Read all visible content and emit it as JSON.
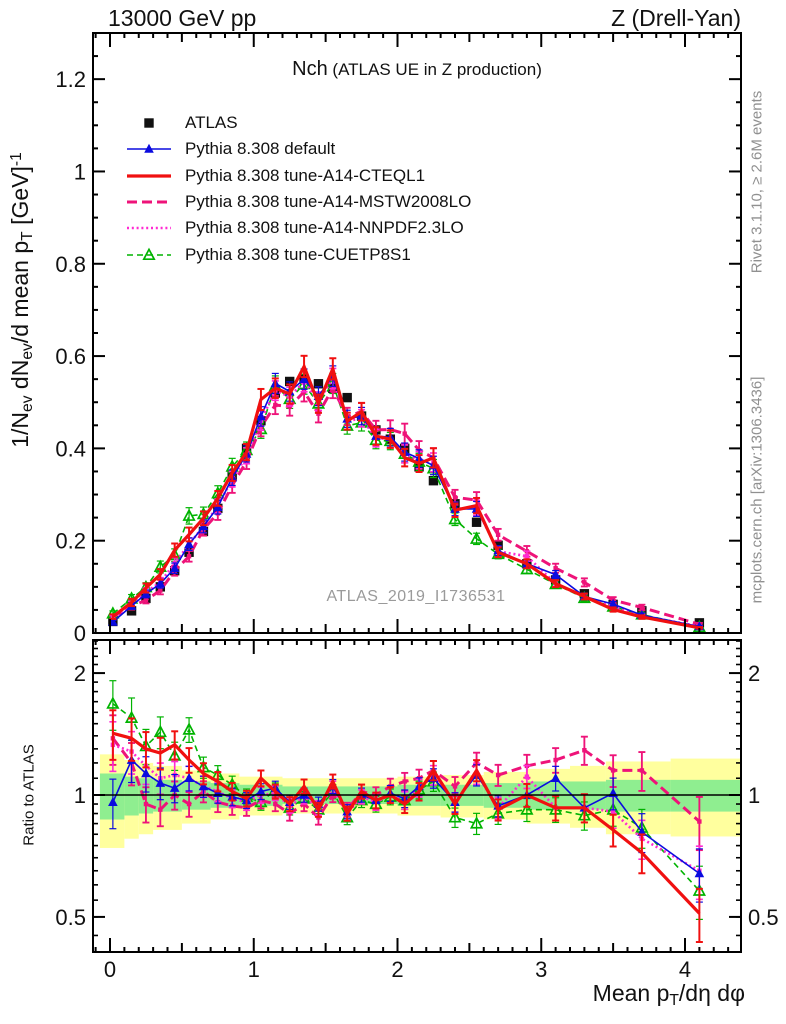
{
  "header": {
    "left": "13000 GeV pp",
    "right": "Z (Drell-Yan)"
  },
  "title": {
    "main": "Nch",
    "paren": " (ATLAS UE in Z production)"
  },
  "watermark": "ATLAS_2019_I1736531",
  "side_notes": {
    "top_right": "Rivet 3.1.10, ≥ 2.6M events",
    "bottom_right": "mcplots.cern.ch [arXiv:1306.3436]"
  },
  "axes": {
    "x": {
      "label_parts": [
        {
          "t": "Mean p"
        },
        {
          "t": "T",
          "s": "sub"
        },
        {
          "t": "/dη dφ"
        }
      ],
      "ticks": [
        {
          "v": 0,
          "label": "0"
        },
        {
          "v": 1,
          "label": "1"
        },
        {
          "v": 2,
          "label": "2"
        },
        {
          "v": 3,
          "label": "3"
        },
        {
          "v": 4,
          "label": "4"
        }
      ],
      "range": [
        -0.118,
        4.39
      ]
    },
    "y_main": {
      "label_parts": [
        {
          "t": "1/N"
        },
        {
          "t": "ev",
          "s": "sub"
        },
        {
          "t": " dN"
        },
        {
          "t": "ev",
          "s": "sub"
        },
        {
          "t": "/d mean p"
        },
        {
          "t": "T",
          "s": "sub"
        },
        {
          "t": " [GeV]"
        },
        {
          "t": "-1",
          "s": "sup"
        }
      ],
      "ticks": [
        {
          "v": 0,
          "label": "0"
        },
        {
          "v": 0.2,
          "label": "0.2"
        },
        {
          "v": 0.4,
          "label": "0.4"
        },
        {
          "v": 0.6,
          "label": "0.6"
        },
        {
          "v": 0.8,
          "label": "0.8"
        },
        {
          "v": 1,
          "label": "1"
        },
        {
          "v": 1.2,
          "label": "1.2"
        }
      ],
      "range": [
        0,
        1.3
      ]
    },
    "y_ratio": {
      "label": "Ratio to ATLAS",
      "ticks": [
        {
          "v": 0.5,
          "label": "0.5"
        },
        {
          "v": 1,
          "label": "1"
        },
        {
          "v": 2,
          "label": "2"
        }
      ],
      "range": [
        0.41,
        2.44
      ],
      "scale": "log"
    }
  },
  "legend": {
    "items": [
      "atlas",
      "default",
      "cteql1",
      "mstw2008lo",
      "nnpdf23lo",
      "cuetp8s1"
    ]
  },
  "chart_data": {
    "type": "line",
    "title": "Nch (ATLAS UE in Z production)",
    "xlabel": "Mean pT/deta dphi",
    "ylabel_main": "1/Nev dNev/d mean pT [GeV]^-1",
    "ylabel_ratio": "Ratio to ATLAS",
    "x": [
      0.02,
      0.15,
      0.25,
      0.35,
      0.45,
      0.55,
      0.65,
      0.75,
      0.85,
      0.95,
      1.05,
      1.15,
      1.25,
      1.35,
      1.45,
      1.55,
      1.65,
      1.75,
      1.85,
      1.95,
      2.05,
      2.15,
      2.25,
      2.4,
      2.55,
      2.7,
      2.9,
      3.1,
      3.3,
      3.5,
      3.7,
      4.1
    ],
    "err_frac": [
      0.14,
      0.12,
      0.1,
      0.09,
      0.08,
      0.07,
      0.06,
      0.055,
      0.05,
      0.045,
      0.045,
      0.04,
      0.04,
      0.04,
      0.04,
      0.04,
      0.04,
      0.04,
      0.045,
      0.045,
      0.05,
      0.05,
      0.055,
      0.055,
      0.06,
      0.06,
      0.065,
      0.07,
      0.08,
      0.09,
      0.11,
      0.15
    ],
    "series": [
      {
        "key": "atlas",
        "label": "ATLAS",
        "color": "#111111",
        "line": "none",
        "width": 0,
        "marker": "square",
        "role": "reference-data",
        "values": [
          0.025,
          0.048,
          0.075,
          0.1,
          0.135,
          0.175,
          0.22,
          0.27,
          0.34,
          0.4,
          0.46,
          0.52,
          0.545,
          0.55,
          0.54,
          0.53,
          0.51,
          0.47,
          0.44,
          0.42,
          0.4,
          0.36,
          0.33,
          0.28,
          0.24,
          0.19,
          0.15,
          0.115,
          0.085,
          0.062,
          0.048,
          0.022
        ]
      },
      {
        "key": "default",
        "label": "Pythia 8.308 default",
        "color": "#0b0bdf",
        "line": "solid",
        "width": 1.6,
        "marker": "triangle",
        "ratio": [
          0.96,
          1.22,
          1.13,
          1.07,
          1.04,
          1.1,
          1.05,
          1.01,
          0.99,
          0.97,
          1.02,
          1.04,
          0.96,
          1.0,
          0.95,
          1.05,
          0.91,
          1.0,
          0.97,
          1.01,
          0.98,
          1.05,
          1.1,
          0.96,
          1.12,
          0.94,
          1.0,
          1.1,
          0.93,
          1.01,
          0.81,
          0.64
        ]
      },
      {
        "key": "cteql1",
        "label": "Pythia 8.308 tune-A14-CTEQL1",
        "color": "#f01010",
        "line": "solid",
        "width": 3.2,
        "marker": "none",
        "ratio": [
          1.42,
          1.38,
          1.3,
          1.27,
          1.33,
          1.22,
          1.13,
          1.08,
          1.02,
          0.98,
          1.1,
          1.02,
          0.95,
          1.05,
          0.92,
          1.08,
          0.9,
          1.02,
          0.97,
          1.0,
          0.95,
          1.02,
          1.15,
          0.95,
          1.15,
          0.92,
          1.0,
          0.93,
          0.93,
          0.82,
          0.72,
          0.51
        ]
      },
      {
        "key": "mstw2008lo",
        "label": "Pythia 8.308 tune-A14-MSTW2008LO",
        "color": "#ee1379",
        "line": "dashed",
        "width": 3,
        "marker": "square-small",
        "ratio": [
          1.38,
          1.2,
          0.95,
          0.92,
          1.0,
          0.95,
          1.02,
          0.96,
          0.94,
          0.93,
          0.97,
          0.95,
          0.9,
          0.95,
          0.88,
          1.0,
          0.92,
          1.02,
          1.0,
          1.05,
          1.08,
          1.1,
          1.15,
          1.05,
          1.2,
          1.12,
          1.18,
          1.22,
          1.29,
          1.15,
          1.15,
          0.86
        ]
      },
      {
        "key": "nnpdf23lo",
        "label": "Pythia 8.308 tune-A14-NNPDF2.3LO",
        "color": "#ff2ad2",
        "line": "dotted",
        "width": 2.6,
        "marker": "square-small",
        "ratio": [
          1.33,
          1.28,
          1.18,
          1.1,
          1.12,
          1.1,
          1.05,
          1.02,
          0.98,
          0.96,
          1.0,
          1.01,
          0.94,
          0.99,
          0.93,
          1.04,
          0.9,
          0.99,
          0.96,
          1.0,
          0.97,
          1.04,
          1.12,
          0.96,
          1.13,
          0.93,
          1.11,
          0.93,
          0.93,
          0.91,
          0.78,
          0.65
        ]
      },
      {
        "key": "cuetp8s1",
        "label": "Pythia 8.308 tune-CUETP8S1",
        "color": "#00b300",
        "line": "dash-small",
        "width": 1.6,
        "marker": "triangle-open",
        "ratio": [
          1.68,
          1.55,
          1.32,
          1.43,
          1.25,
          1.45,
          1.17,
          1.12,
          1.06,
          0.99,
          0.96,
          1.03,
          0.93,
          0.98,
          0.92,
          1.02,
          0.88,
          0.97,
          0.95,
          0.99,
          0.97,
          1.03,
          1.08,
          0.88,
          0.85,
          0.9,
          0.92,
          0.92,
          0.89,
          0.92,
          0.83,
          0.58
        ]
      }
    ],
    "bands": {
      "yellow": {
        "color": "#ffff9e",
        "steps": [
          [
            -0.07,
            0.1,
            0.74,
            1.26
          ],
          [
            0.1,
            0.2,
            0.78,
            1.22
          ],
          [
            0.2,
            0.3,
            0.8,
            1.2
          ],
          [
            0.3,
            0.5,
            0.82,
            1.18
          ],
          [
            0.5,
            0.7,
            0.85,
            1.15
          ],
          [
            0.7,
            0.9,
            0.87,
            1.13
          ],
          [
            0.9,
            1.2,
            0.89,
            1.11
          ],
          [
            1.2,
            2.0,
            0.9,
            1.1
          ],
          [
            2.0,
            2.3,
            0.89,
            1.11
          ],
          [
            2.3,
            2.6,
            0.88,
            1.12
          ],
          [
            2.6,
            2.9,
            0.87,
            1.14
          ],
          [
            2.9,
            3.2,
            0.85,
            1.16
          ],
          [
            3.2,
            3.45,
            0.83,
            1.18
          ],
          [
            3.45,
            3.9,
            0.8,
            1.21
          ],
          [
            3.9,
            4.39,
            0.79,
            1.23
          ]
        ]
      },
      "green": {
        "color": "#8fee90",
        "steps": [
          [
            -0.07,
            0.1,
            0.87,
            1.13
          ],
          [
            0.1,
            0.2,
            0.89,
            1.11
          ],
          [
            0.2,
            0.3,
            0.9,
            1.1
          ],
          [
            0.3,
            0.5,
            0.91,
            1.09
          ],
          [
            0.5,
            0.7,
            0.92,
            1.08
          ],
          [
            0.7,
            0.9,
            0.93,
            1.07
          ],
          [
            0.9,
            1.2,
            0.94,
            1.06
          ],
          [
            1.2,
            2.0,
            0.95,
            1.05
          ],
          [
            2.0,
            2.3,
            0.94,
            1.06
          ],
          [
            2.3,
            2.6,
            0.94,
            1.06
          ],
          [
            2.6,
            2.9,
            0.93,
            1.07
          ],
          [
            2.9,
            3.2,
            0.92,
            1.08
          ],
          [
            3.2,
            3.45,
            0.92,
            1.08
          ],
          [
            3.45,
            3.9,
            0.91,
            1.09
          ],
          [
            3.9,
            4.39,
            0.91,
            1.09
          ]
        ]
      }
    },
    "ratio_reference": 1
  }
}
